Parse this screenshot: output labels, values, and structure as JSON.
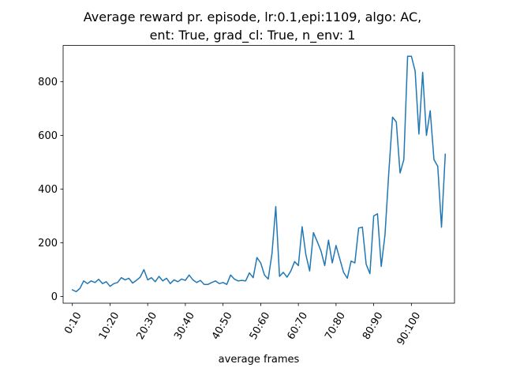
{
  "chart_data": {
    "type": "line",
    "title_line1": "Average reward pr. episode, lr:0.1,epi:1109, algo: AC,",
    "title_line2": "ent: True, grad_cl: True, n_env: 1",
    "xlabel": "average frames",
    "ylabel": "",
    "x_tick_labels": [
      "0:10",
      "10:20",
      "20:30",
      "30:40",
      "40:50",
      "50:60",
      "60:70",
      "70:80",
      "80:90",
      "90:100"
    ],
    "y_ticks": [
      0,
      200,
      400,
      600,
      800
    ],
    "ylim": [
      -25,
      935
    ],
    "xlim": [
      -2.45,
      101.45
    ],
    "grid": false,
    "series_color": "#1f77b4",
    "values": [
      25,
      18,
      30,
      58,
      48,
      58,
      52,
      64,
      48,
      55,
      38,
      48,
      52,
      70,
      62,
      68,
      50,
      60,
      72,
      100,
      62,
      70,
      55,
      75,
      58,
      68,
      48,
      62,
      55,
      65,
      60,
      80,
      62,
      52,
      60,
      45,
      45,
      52,
      58,
      48,
      52,
      45,
      80,
      65,
      58,
      60,
      58,
      88,
      70,
      145,
      125,
      80,
      65,
      160,
      335,
      75,
      90,
      72,
      95,
      130,
      115,
      260,
      155,
      95,
      238,
      205,
      170,
      115,
      210,
      125,
      190,
      140,
      90,
      68,
      132,
      125,
      255,
      258,
      120,
      85,
      300,
      308,
      112,
      230,
      460,
      668,
      650,
      460,
      510,
      895,
      895,
      840,
      605,
      835,
      600,
      692,
      510,
      485,
      258,
      530
    ]
  }
}
